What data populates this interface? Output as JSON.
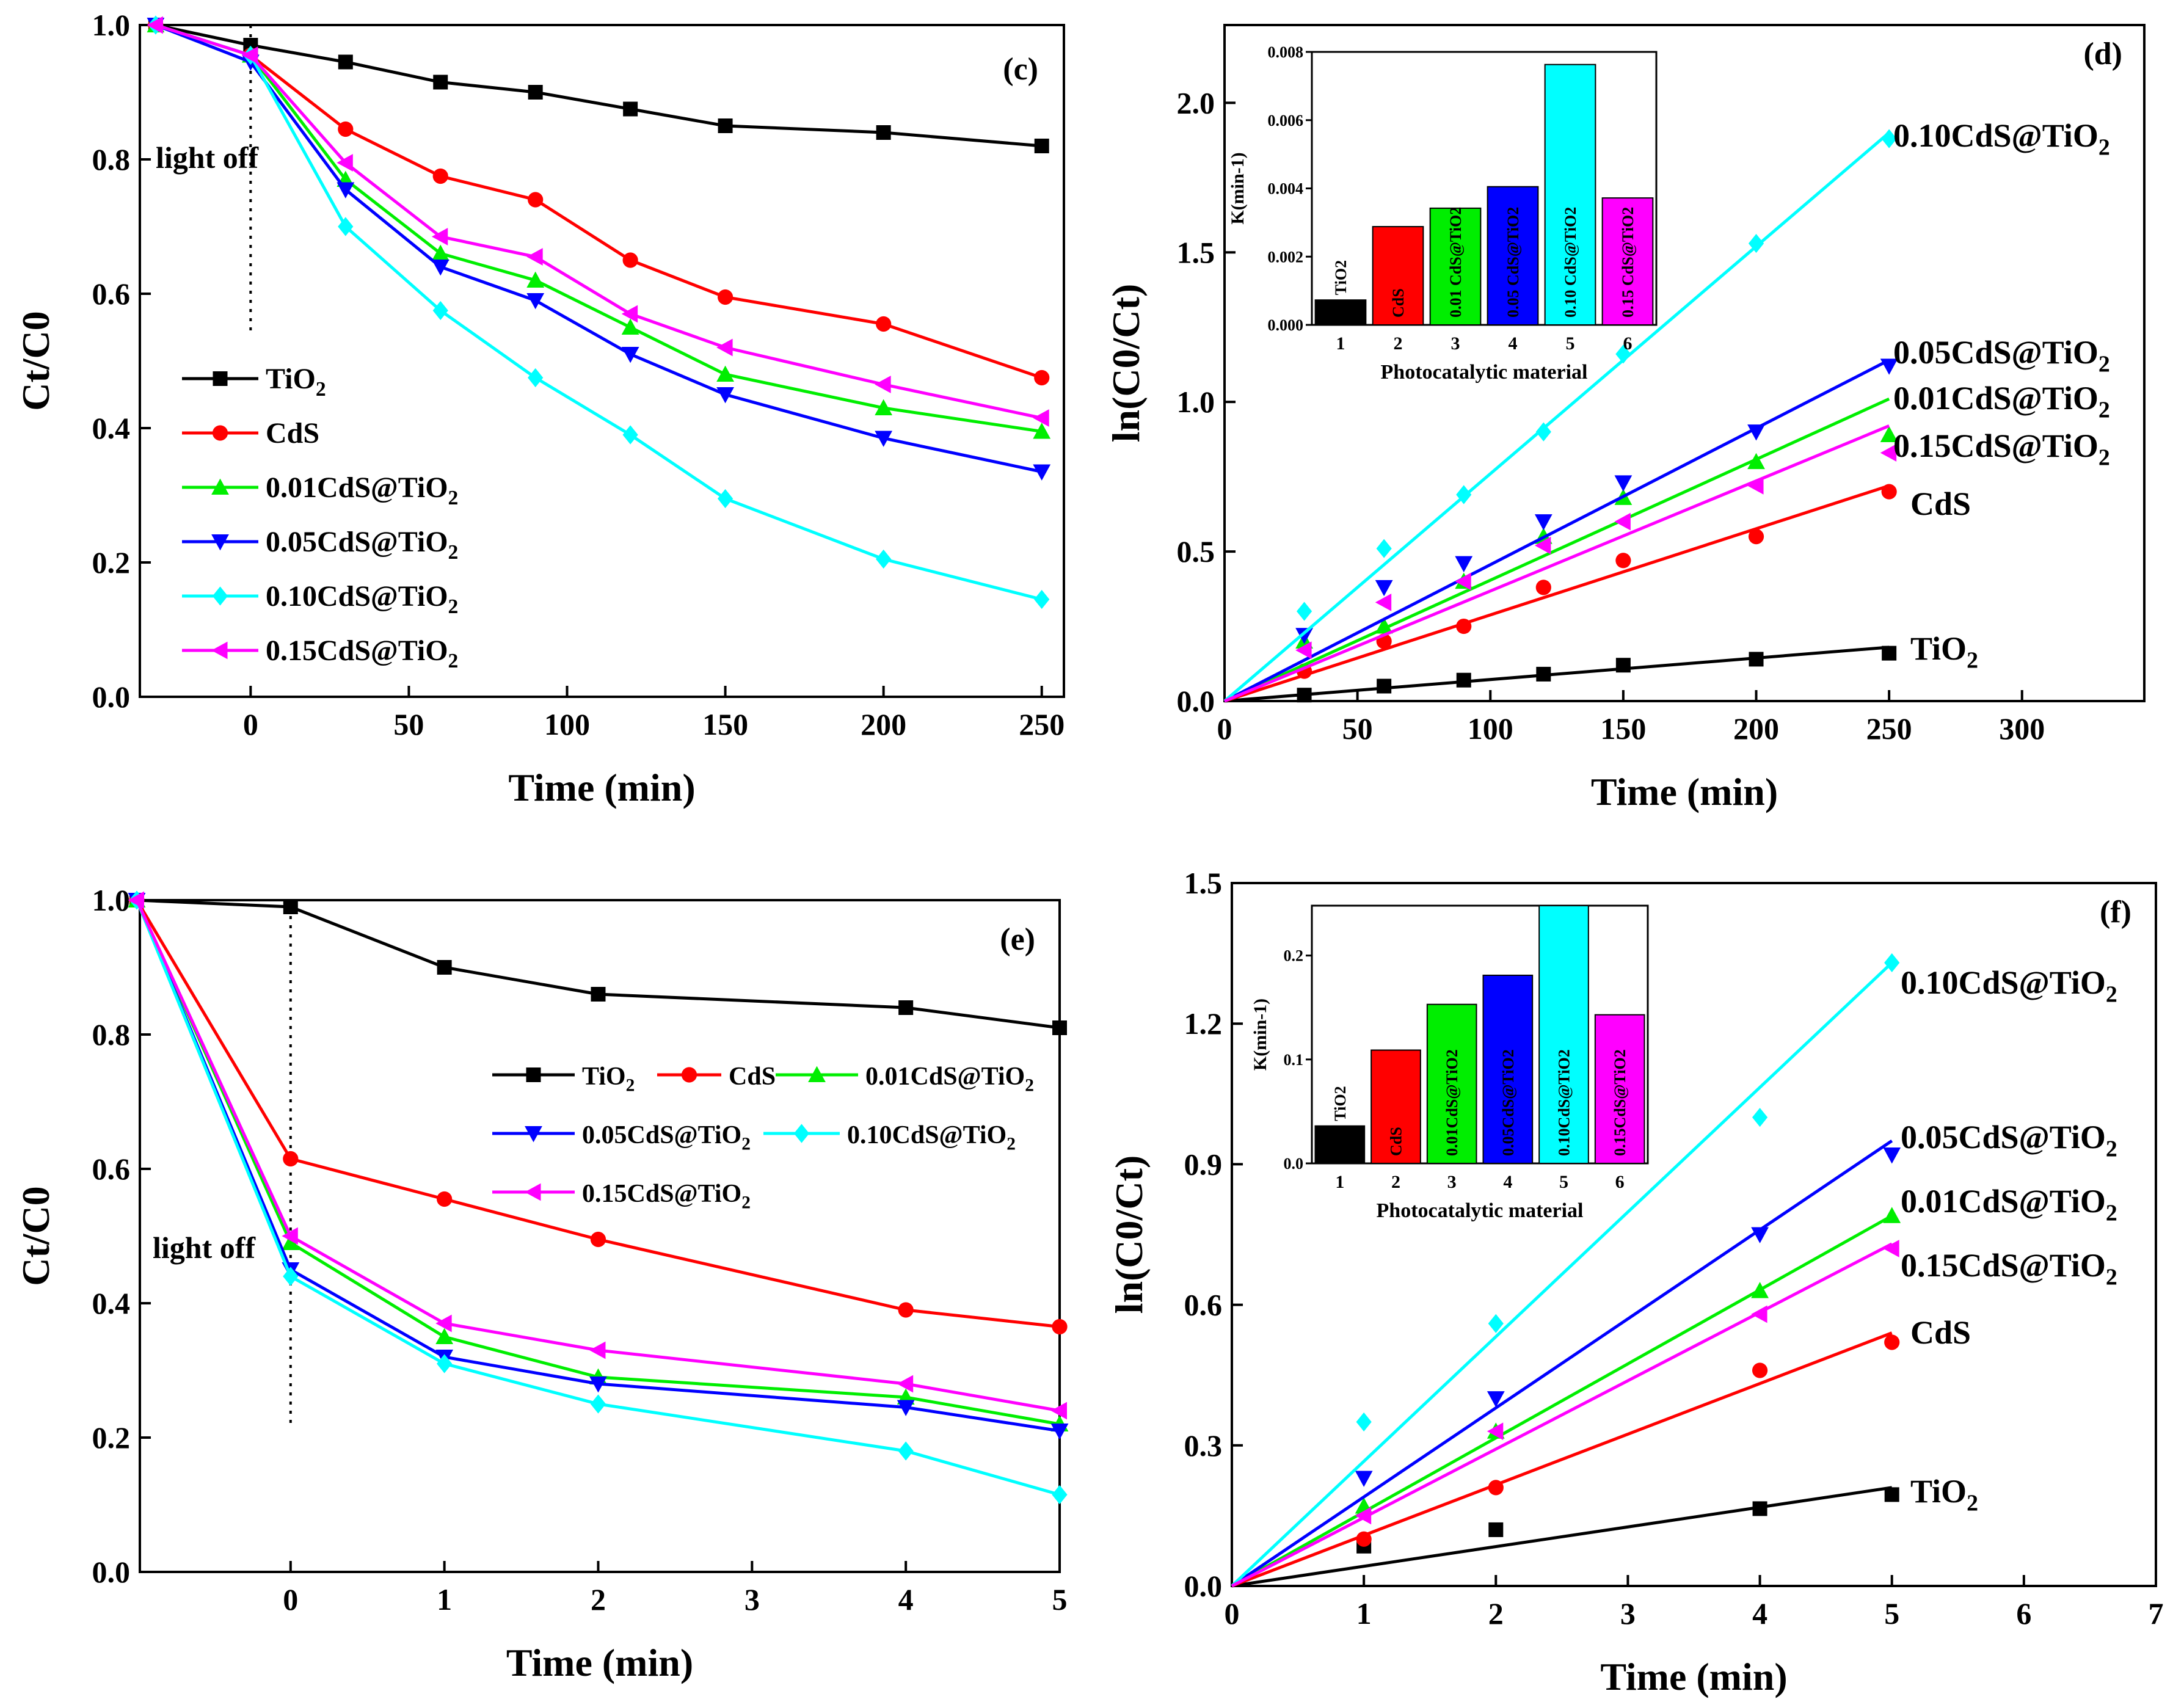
{
  "colors": {
    "TiO2": "#000000",
    "CdS": "#ff0000",
    "0.01CdS@TiO2": "#00ee00",
    "0.05CdS@TiO2": "#0000ff",
    "0.10CdS@TiO2": "#00ffff",
    "0.15CdS@TiO2": "#ff00ff"
  },
  "chart_data": [
    {
      "panel": "(c)",
      "type": "line",
      "xlabel": "Time (min)",
      "ylabel": "Ct/C0",
      "xlim": [
        -35,
        257
      ],
      "ylim": [
        0,
        1.0
      ],
      "xticks": [
        0,
        50,
        100,
        150,
        200,
        250
      ],
      "yticks": [
        0.0,
        0.2,
        0.4,
        0.6,
        0.8,
        1.0
      ],
      "annotation": "light off",
      "light_off_x": 0,
      "legend": "left",
      "x": [
        -30,
        0,
        30,
        60,
        90,
        120,
        150,
        200,
        250
      ],
      "series": [
        {
          "name": "TiO2",
          "marker": "square",
          "values": [
            1.0,
            0.97,
            0.945,
            0.915,
            0.9,
            0.875,
            0.85,
            0.84,
            0.82
          ]
        },
        {
          "name": "CdS",
          "marker": "circle",
          "values": [
            1.0,
            0.955,
            0.845,
            0.775,
            0.74,
            0.65,
            0.595,
            0.555,
            0.475
          ]
        },
        {
          "name": "0.01CdS@TiO2",
          "marker": "triangle-up",
          "values": [
            1.0,
            0.955,
            0.77,
            0.66,
            0.62,
            0.55,
            0.48,
            0.43,
            0.395
          ]
        },
        {
          "name": "0.05CdS@TiO2",
          "marker": "triangle-down",
          "values": [
            1.0,
            0.945,
            0.755,
            0.64,
            0.59,
            0.51,
            0.45,
            0.385,
            0.335
          ]
        },
        {
          "name": "0.10CdS@TiO2",
          "marker": "diamond",
          "values": [
            1.0,
            0.955,
            0.7,
            0.575,
            0.475,
            0.39,
            0.295,
            0.205,
            0.145
          ]
        },
        {
          "name": "0.15CdS@TiO2",
          "marker": "triangle-left",
          "values": [
            1.0,
            0.955,
            0.795,
            0.685,
            0.655,
            0.57,
            0.52,
            0.465,
            0.415
          ]
        }
      ]
    },
    {
      "panel": "(d)",
      "type": "scatter",
      "xlabel": "Time (min)",
      "ylabel": "ln(C0/Ct)",
      "xlim": [
        0,
        346
      ],
      "ylim": [
        0,
        2.26
      ],
      "xticks": [
        0,
        50,
        100,
        150,
        200,
        250,
        300
      ],
      "yticks": [
        0.0,
        0.5,
        1.0,
        1.5,
        2.0
      ],
      "x": [
        30,
        60,
        90,
        120,
        150,
        200,
        250
      ],
      "fit_x": [
        0,
        250
      ],
      "series": [
        {
          "name": "TiO2",
          "marker": "square",
          "values": [
            0.02,
            0.05,
            0.07,
            0.09,
            0.12,
            0.14,
            0.16
          ],
          "fit_end": 0.18
        },
        {
          "name": "CdS",
          "marker": "circle",
          "values": [
            0.1,
            0.2,
            0.25,
            0.38,
            0.47,
            0.55,
            0.7
          ],
          "fit_end": 0.72
        },
        {
          "name": "0.01CdS@TiO2",
          "marker": "triangle-up",
          "values": [
            0.2,
            0.25,
            0.4,
            0.55,
            0.68,
            0.8,
            0.89
          ],
          "fit_end": 1.01
        },
        {
          "name": "0.05CdS@TiO2",
          "marker": "triangle-down",
          "values": [
            0.22,
            0.38,
            0.46,
            0.6,
            0.73,
            0.9,
            1.12
          ],
          "fit_end": 1.14
        },
        {
          "name": "0.10CdS@TiO2",
          "marker": "diamond",
          "values": [
            0.3,
            0.51,
            0.69,
            0.9,
            1.16,
            1.53,
            1.88
          ],
          "fit_end": 1.9
        },
        {
          "name": "0.15CdS@TiO2",
          "marker": "triangle-left",
          "values": [
            0.17,
            0.33,
            0.4,
            0.52,
            0.6,
            0.72,
            0.83
          ],
          "fit_end": 0.92
        }
      ],
      "inset": {
        "type": "bar",
        "xlabel": "Photocatalytic material",
        "ylabel": "K(min-1)",
        "ylim": [
          0,
          0.008
        ],
        "yticks": [
          "0.000",
          "0.002",
          "0.004",
          "0.006",
          "0.008"
        ],
        "categories": [
          "1",
          "2",
          "3",
          "4",
          "5",
          "6"
        ],
        "bar_labels": [
          "TiO2",
          "CdS",
          "0.01 CdS@TiO2",
          "0.05 CdS@TiO2",
          "0.10 CdS@TiO2",
          "0.15 CdS@TiO2"
        ],
        "values": [
          0.00073,
          0.00288,
          0.00342,
          0.00405,
          0.00763,
          0.00372
        ]
      }
    },
    {
      "panel": "(e)",
      "type": "line",
      "xlabel": "Time (min)",
      "ylabel": "Ct/C0",
      "xlim": [
        -0.98,
        5.0
      ],
      "ylim": [
        0,
        1.0
      ],
      "xticks": [
        0,
        1,
        2,
        3,
        4,
        5
      ],
      "yticks": [
        0.0,
        0.2,
        0.4,
        0.6,
        0.8,
        1.0
      ],
      "annotation": "light off",
      "light_off_x": 0,
      "legend": "center",
      "x": [
        -1,
        0,
        1,
        2,
        4,
        5
      ],
      "series": [
        {
          "name": "TiO2",
          "marker": "square",
          "values": [
            1.0,
            0.99,
            0.9,
            0.86,
            0.84,
            0.81
          ]
        },
        {
          "name": "CdS",
          "marker": "circle",
          "values": [
            1.0,
            0.615,
            0.555,
            0.495,
            0.39,
            0.365
          ]
        },
        {
          "name": "0.01CdS@TiO2",
          "marker": "triangle-up",
          "values": [
            1.0,
            0.49,
            0.35,
            0.29,
            0.26,
            0.22
          ]
        },
        {
          "name": "0.05CdS@TiO2",
          "marker": "triangle-down",
          "values": [
            1.0,
            0.45,
            0.32,
            0.28,
            0.245,
            0.21
          ]
        },
        {
          "name": "0.10CdS@TiO2",
          "marker": "diamond",
          "values": [
            1.0,
            0.44,
            0.31,
            0.25,
            0.18,
            0.115
          ]
        },
        {
          "name": "0.15CdS@TiO2",
          "marker": "triangle-left",
          "values": [
            1.0,
            0.5,
            0.37,
            0.33,
            0.28,
            0.24
          ]
        }
      ]
    },
    {
      "panel": "(f)",
      "type": "scatter",
      "xlabel": "Time (min)",
      "ylabel": "ln(C0/Ct)",
      "xlim": [
        0,
        7
      ],
      "ylim": [
        0,
        1.5
      ],
      "xticks": [
        0,
        1,
        2,
        3,
        4,
        5,
        6,
        7
      ],
      "yticks": [
        0.0,
        0.3,
        0.6,
        0.9,
        1.2,
        1.5
      ],
      "x": [
        1,
        2,
        4,
        5
      ],
      "fit_x": [
        0,
        5
      ],
      "series": [
        {
          "name": "TiO2",
          "marker": "square",
          "values": [
            0.085,
            0.12,
            0.165,
            0.195
          ],
          "fit_end": 0.21
        },
        {
          "name": "CdS",
          "marker": "circle",
          "values": [
            0.1,
            0.21,
            0.46,
            0.52
          ],
          "fit_end": 0.54
        },
        {
          "name": "0.01CdS@TiO2",
          "marker": "triangle-up",
          "values": [
            0.17,
            0.33,
            0.63,
            0.79
          ],
          "fit_end": 0.79
        },
        {
          "name": "0.05CdS@TiO2",
          "marker": "triangle-down",
          "values": [
            0.23,
            0.4,
            0.75,
            0.92
          ],
          "fit_end": 0.95
        },
        {
          "name": "0.10CdS@TiO2",
          "marker": "diamond",
          "values": [
            0.35,
            0.56,
            1.0,
            1.33
          ],
          "fit_end": 1.33
        },
        {
          "name": "0.15CdS@TiO2",
          "marker": "triangle-left",
          "values": [
            0.15,
            0.33,
            0.58,
            0.72
          ],
          "fit_end": 0.73
        }
      ],
      "inset": {
        "type": "bar",
        "xlabel": "Photocatalytic material",
        "ylabel": "K(min-1)",
        "ylim": [
          0,
          0.248
        ],
        "yticks": [
          "0.0",
          "0.1",
          "0.2"
        ],
        "categories": [
          "1",
          "2",
          "3",
          "4",
          "5",
          "6"
        ],
        "bar_labels": [
          "TiO2",
          "CdS",
          "0.01CdS@TiO2",
          "0.05CdS@TiO2",
          "0.10CdS@TiO2",
          "0.15CdS@TiO2"
        ],
        "values": [
          0.036,
          0.109,
          0.153,
          0.181,
          0.25,
          0.143
        ]
      }
    }
  ]
}
